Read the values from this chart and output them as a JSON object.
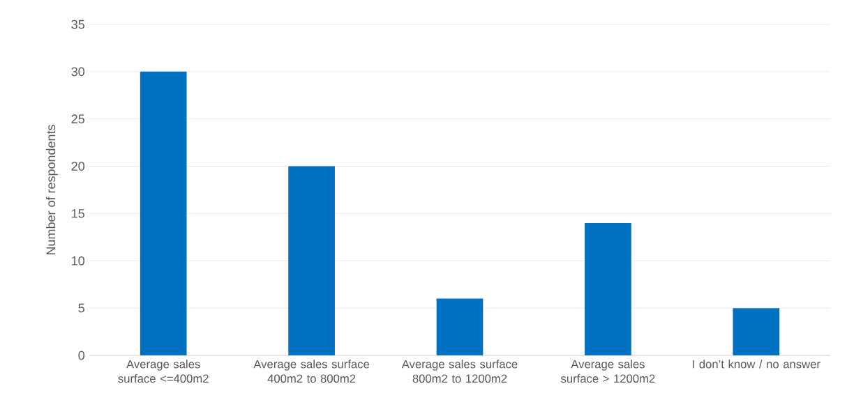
{
  "chart_data": {
    "type": "bar",
    "categories": [
      "Average sales surface <=400m2",
      "Average sales surface 400m2 to 800m2",
      "Average sales surface 800m2 to 1200m2",
      "Average sales surface > 1200m2",
      "I don’t know / no answer"
    ],
    "values": [
      30,
      20,
      6,
      14,
      5
    ],
    "color": "#0070c0",
    "ylabel": "Number of respondents",
    "ylim": [
      0,
      35
    ],
    "yticks": [
      0,
      5,
      10,
      15,
      20,
      25,
      30,
      35
    ],
    "grid": "y"
  }
}
